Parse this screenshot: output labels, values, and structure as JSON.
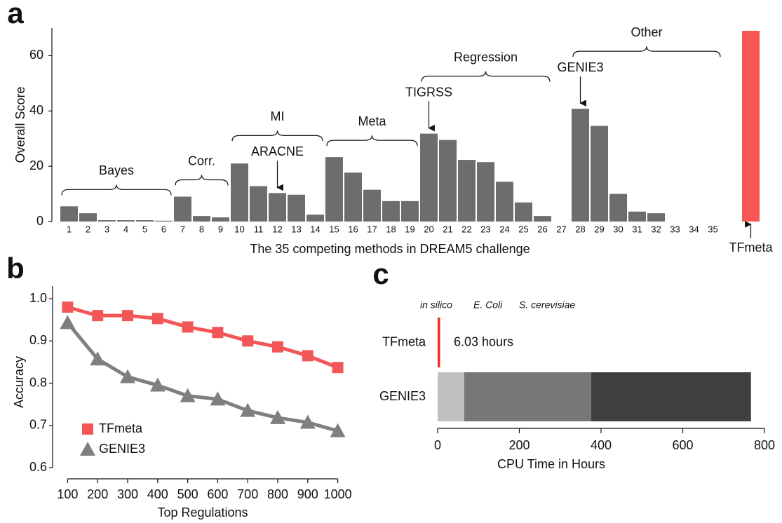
{
  "chart_data": [
    {
      "type": "bar",
      "panel": "a",
      "x_label": "The 35 competing methods in DREAM5 challenge",
      "y_label": "Overall Score",
      "categories": [
        "1",
        "2",
        "3",
        "4",
        "5",
        "6",
        "7",
        "8",
        "9",
        "10",
        "11",
        "12",
        "13",
        "14",
        "15",
        "16",
        "17",
        "18",
        "19",
        "20",
        "21",
        "22",
        "23",
        "24",
        "25",
        "26",
        "27",
        "28",
        "29",
        "30",
        "31",
        "32",
        "33",
        "34",
        "35",
        "TFmeta"
      ],
      "values": [
        5.5,
        3,
        0.5,
        0.5,
        0.5,
        0.3,
        9,
        2,
        1.5,
        21,
        12.8,
        10.3,
        9.7,
        2.5,
        23.3,
        17.7,
        11.5,
        7.4,
        7.4,
        31.8,
        29.5,
        22.3,
        21.5,
        14.4,
        6.9,
        2,
        0,
        40.8,
        34.6,
        10,
        3.6,
        3,
        0,
        0,
        0,
        69
      ],
      "colors": [
        "#6d6d6d",
        "#6d6d6d",
        "#6d6d6d",
        "#6d6d6d",
        "#6d6d6d",
        "#6d6d6d",
        "#6d6d6d",
        "#6d6d6d",
        "#6d6d6d",
        "#6d6d6d",
        "#6d6d6d",
        "#6d6d6d",
        "#6d6d6d",
        "#6d6d6d",
        "#6d6d6d",
        "#6d6d6d",
        "#6d6d6d",
        "#6d6d6d",
        "#6d6d6d",
        "#6d6d6d",
        "#6d6d6d",
        "#6d6d6d",
        "#6d6d6d",
        "#6d6d6d",
        "#6d6d6d",
        "#6d6d6d",
        "#6d6d6d",
        "#6d6d6d",
        "#6d6d6d",
        "#6d6d6d",
        "#6d6d6d",
        "#6d6d6d",
        "#6d6d6d",
        "#6d6d6d",
        "#6d6d6d",
        "#f85555"
      ],
      "ylim": [
        0,
        70
      ],
      "yticks": [
        0,
        20,
        40,
        60
      ],
      "groups": [
        {
          "label": "Bayes",
          "first": 0,
          "last": 5
        },
        {
          "label": "Corr.",
          "first": 6,
          "last": 8
        },
        {
          "label": "MI",
          "first": 9,
          "last": 13
        },
        {
          "label": "Meta",
          "first": 14,
          "last": 18
        },
        {
          "label": "Regression",
          "first": 19,
          "last": 25
        },
        {
          "label": "Other",
          "first": 27,
          "last": 34
        }
      ],
      "arrows": [
        {
          "label": "ARACNE",
          "index": 11
        },
        {
          "label": "TIGRSS",
          "index": 19
        },
        {
          "label": "GENIE3",
          "index": 27
        }
      ]
    },
    {
      "type": "line",
      "panel": "b",
      "x_label": "Top Regulations",
      "y_label": "Accuracy",
      "x": [
        100,
        200,
        300,
        400,
        500,
        600,
        700,
        800,
        900,
        1000
      ],
      "series": [
        {
          "name": "TFmeta",
          "color": "#f25656",
          "marker": "square",
          "values": [
            0.98,
            0.96,
            0.96,
            0.953,
            0.933,
            0.92,
            0.9,
            0.886,
            0.865,
            0.837
          ]
        },
        {
          "name": "GENIE3",
          "color": "#7f7f7f",
          "marker": "triangle",
          "values": [
            0.943,
            0.857,
            0.815,
            0.795,
            0.77,
            0.762,
            0.735,
            0.718,
            0.707,
            0.687
          ]
        }
      ],
      "xlim": [
        50,
        1050
      ],
      "xticks": [
        100,
        200,
        300,
        400,
        500,
        600,
        700,
        800,
        900,
        1000
      ],
      "ylim": [
        0.6,
        1.03
      ],
      "yticks": [
        {
          "value": 0.6,
          "label": "0.6"
        },
        {
          "value": 0.7,
          "label": "0.7"
        },
        {
          "value": 0.8,
          "label": "0.8"
        },
        {
          "value": 0.9,
          "label": "0.9"
        },
        {
          "value": 1,
          "label": "1.0"
        }
      ],
      "legend": "lower-left"
    },
    {
      "type": "hbar",
      "panel": "c",
      "x_label": "CPU Time in Hours",
      "categories": [
        "TFmeta",
        "GENIE3"
      ],
      "values": [
        6.03,
        null
      ],
      "value_labels": [
        "6.03 hours",
        null
      ],
      "color": "#ee2a2a",
      "series": [
        {
          "name": "in silico",
          "color": "#c0c0c0",
          "values": [
            null,
            65
          ]
        },
        {
          "name": "E. Coli",
          "color": "#777777",
          "values": [
            null,
            311
          ]
        },
        {
          "name": "S. cerevisiae",
          "color": "#404040",
          "values": [
            null,
            391
          ]
        }
      ],
      "xlim": [
        0,
        800
      ],
      "xticks": [
        0,
        200,
        400,
        600,
        800
      ]
    }
  ]
}
